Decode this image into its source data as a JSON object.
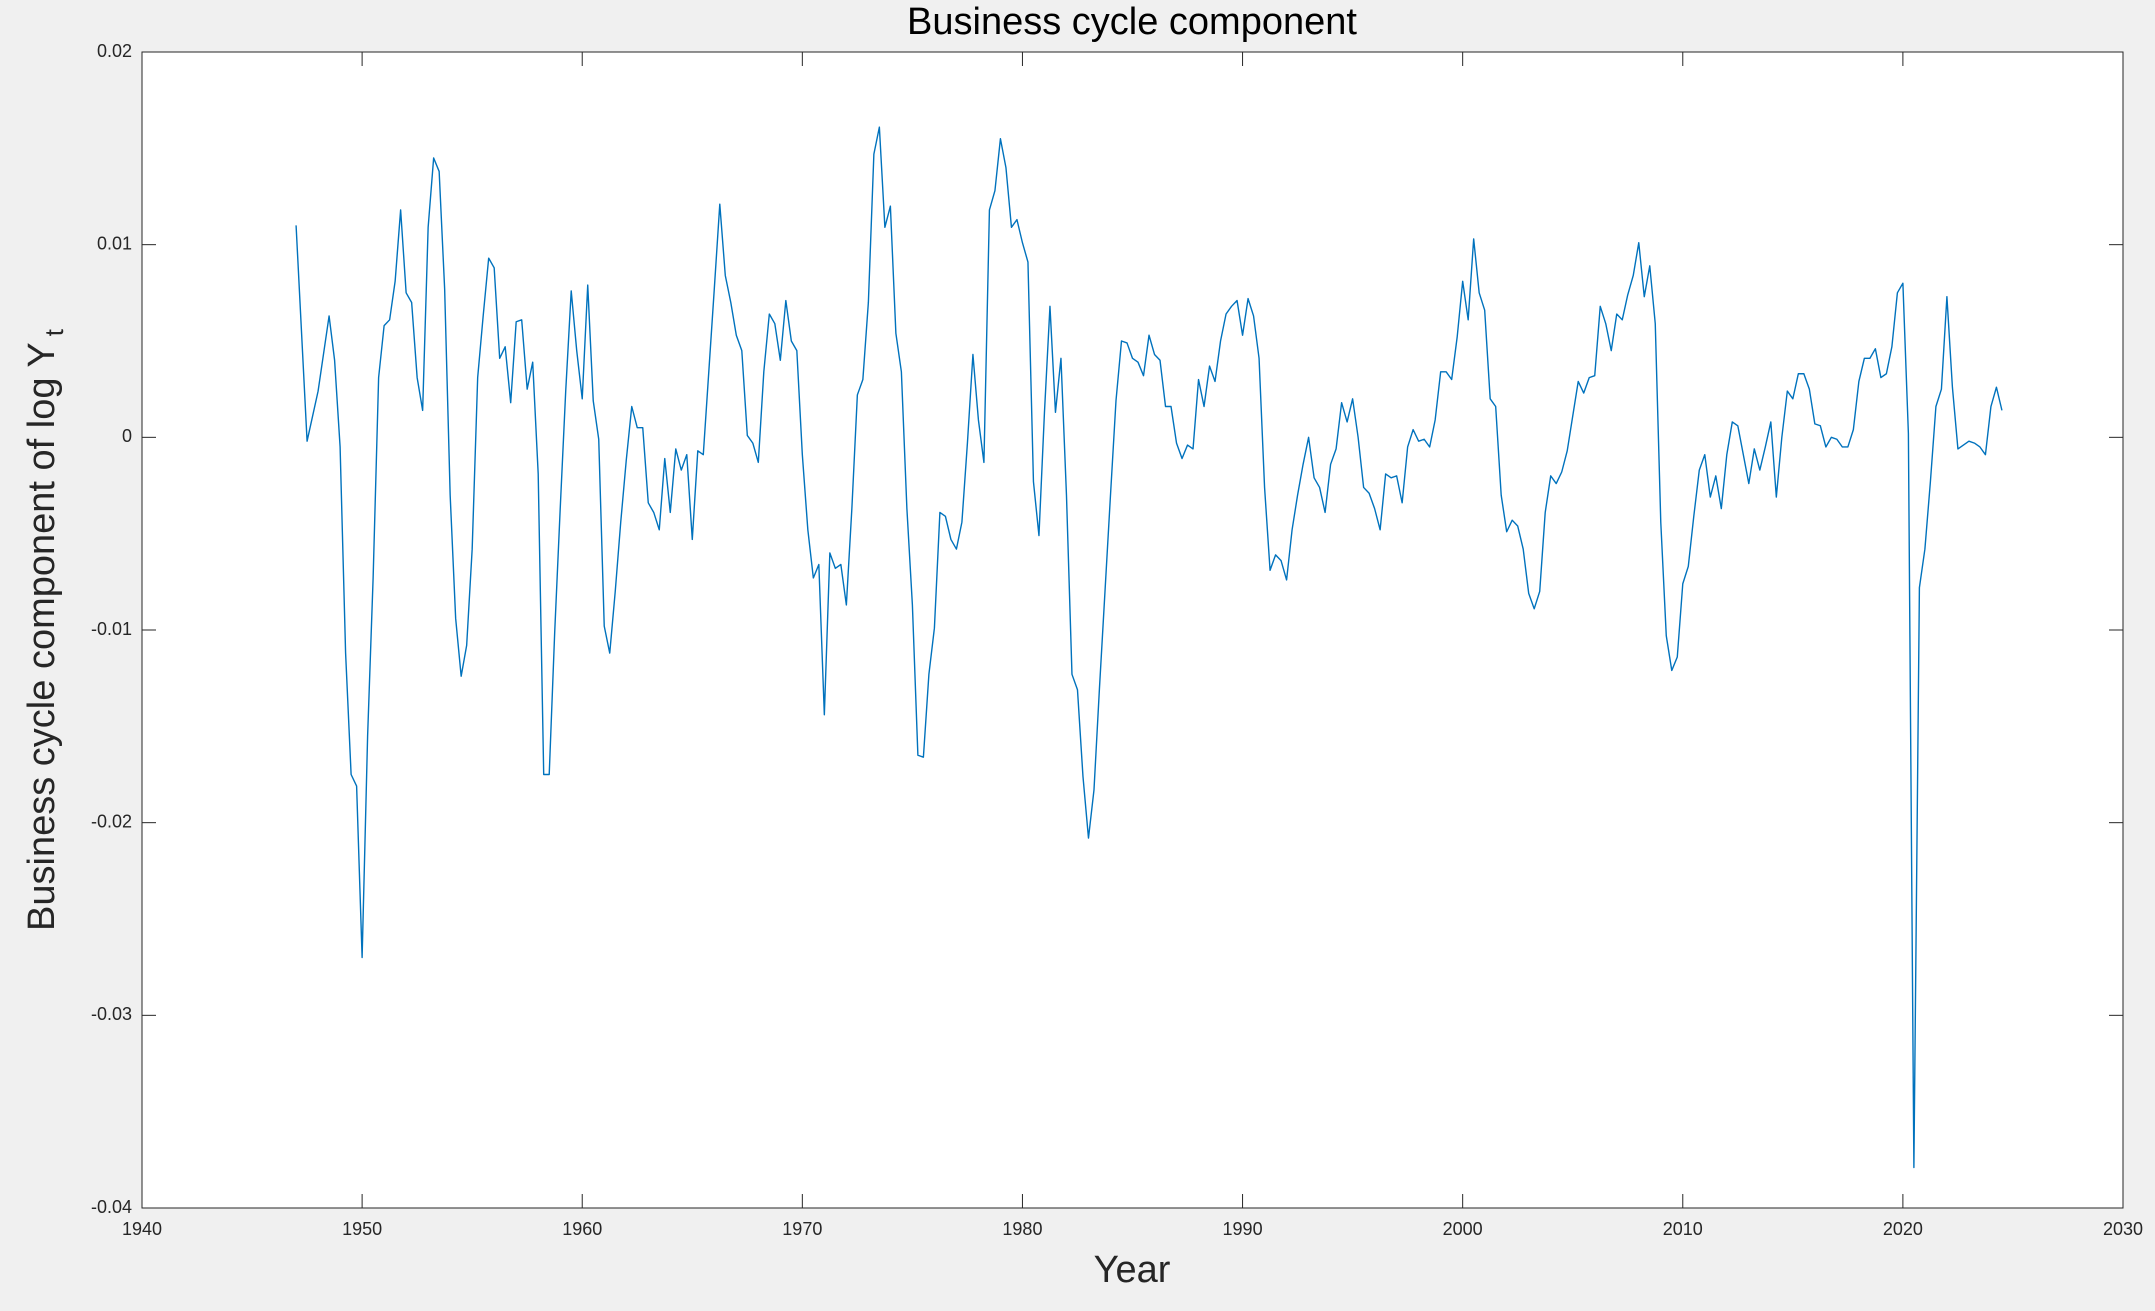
{
  "chart_data": {
    "type": "line",
    "title": "Business cycle component",
    "xlabel": "Year",
    "ylabel": {
      "text": "Business cycle component of log Y",
      "subscript": "t"
    },
    "color": "#0072bd",
    "xlim": [
      1940,
      2030
    ],
    "ylim": [
      -0.04,
      0.02
    ],
    "xticks": [
      1940,
      1950,
      1960,
      1970,
      1980,
      1990,
      2000,
      2010,
      2020,
      2030
    ],
    "yticks": [
      -0.04,
      -0.03,
      -0.02,
      -0.01,
      0,
      0.01,
      0.02
    ],
    "grid": false,
    "x": [
      1947,
      1947.5,
      1948,
      1948.5,
      1948.75,
      1949,
      1949.25,
      1949.5,
      1949.75,
      1950,
      1950.25,
      1950.5,
      1950.75,
      1951,
      1951.25,
      1951.5,
      1951.75,
      1952,
      1952.25,
      1952.5,
      1952.75,
      1953,
      1953.25,
      1953.5,
      1953.75,
      1954,
      1954.25,
      1954.5,
      1954.75,
      1955,
      1955.25,
      1955.5,
      1955.75,
      1956,
      1956.25,
      1956.5,
      1956.75,
      1957,
      1957.25,
      1957.5,
      1957.75,
      1958,
      1958.25,
      1958.5,
      1958.75,
      1959,
      1959.25,
      1959.5,
      1959.75,
      1960,
      1960.25,
      1960.5,
      1960.75,
      1961,
      1961.25,
      1961.5,
      1961.75,
      1962,
      1962.25,
      1962.5,
      1962.75,
      1963,
      1963.25,
      1963.5,
      1963.75,
      1964,
      1964.25,
      1964.5,
      1964.75,
      1965,
      1965.25,
      1965.5,
      1965.75,
      1966,
      1966.25,
      1966.5,
      1966.75,
      1967,
      1967.25,
      1967.5,
      1967.75,
      1968,
      1968.25,
      1968.5,
      1968.75,
      1969,
      1969.25,
      1969.5,
      1969.75,
      1970,
      1970.25,
      1970.5,
      1970.75,
      1971,
      1971.25,
      1971.5,
      1971.75,
      1972,
      1972.25,
      1972.5,
      1972.75,
      1973,
      1973.25,
      1973.5,
      1973.75,
      1974,
      1974.25,
      1974.5,
      1974.75,
      1975,
      1975.25,
      1975.5,
      1975.75,
      1976,
      1976.25,
      1976.5,
      1976.75,
      1977,
      1977.25,
      1977.5,
      1977.75,
      1978,
      1978.25,
      1978.5,
      1978.75,
      1979,
      1979.25,
      1979.5,
      1979.75,
      1980,
      1980.25,
      1980.5,
      1980.75,
      1981,
      1981.25,
      1981.5,
      1981.75,
      1982,
      1982.25,
      1982.5,
      1982.75,
      1983,
      1983.25,
      1983.5,
      1983.75,
      1984,
      1984.25,
      1984.5,
      1984.75,
      1985,
      1985.25,
      1985.5,
      1985.75,
      1986,
      1986.25,
      1986.5,
      1986.75,
      1987,
      1987.25,
      1987.5,
      1987.75,
      1988,
      1988.25,
      1988.5,
      1988.75,
      1989,
      1989.25,
      1989.5,
      1989.75,
      1990,
      1990.25,
      1990.5,
      1990.75,
      1991,
      1991.25,
      1991.5,
      1991.75,
      1992,
      1992.25,
      1992.5,
      1992.75,
      1993,
      1993.25,
      1993.5,
      1993.75,
      1994,
      1994.25,
      1994.5,
      1994.75,
      1995,
      1995.25,
      1995.5,
      1995.75,
      1996,
      1996.25,
      1996.5,
      1996.75,
      1997,
      1997.25,
      1997.5,
      1997.75,
      1998,
      1998.25,
      1998.5,
      1998.75,
      1999,
      1999.25,
      1999.5,
      1999.75,
      2000,
      2000.25,
      2000.5,
      2000.75,
      2001,
      2001.25,
      2001.5,
      2001.75,
      2002,
      2002.25,
      2002.5,
      2002.75,
      2003,
      2003.25,
      2003.5,
      2003.75,
      2004,
      2004.25,
      2004.5,
      2004.75,
      2005,
      2005.25,
      2005.5,
      2005.75,
      2006,
      2006.25,
      2006.5,
      2006.75,
      2007,
      2007.25,
      2007.5,
      2007.75,
      2008,
      2008.25,
      2008.5,
      2008.75,
      2009,
      2009.25,
      2009.5,
      2009.75,
      2010,
      2010.25,
      2010.5,
      2010.75,
      2011,
      2011.25,
      2011.5,
      2011.75,
      2012,
      2012.25,
      2012.5,
      2012.75,
      2013,
      2013.25,
      2013.5,
      2013.75,
      2014,
      2014.25,
      2014.5,
      2014.75,
      2015,
      2015.25,
      2015.5,
      2015.75,
      2016,
      2016.25,
      2016.5,
      2016.75,
      2017,
      2017.25,
      2017.5,
      2017.75,
      2018,
      2018.25,
      2018.5,
      2018.75,
      2019,
      2019.25,
      2019.5,
      2019.75,
      2020,
      2020.25,
      2020.5,
      2020.75,
      2021,
      2021.25,
      2021.5,
      2021.75,
      2022,
      2022.25,
      2022.5,
      2022.75,
      2023,
      2023.25,
      2023.5,
      2023.75,
      2024,
      2024.25,
      2024.5
    ],
    "values": [
      0.011,
      -0.0002,
      0.0024,
      0.0063,
      0.004,
      -0.0005,
      -0.0112,
      -0.0175,
      -0.0181,
      -0.027,
      -0.0155,
      -0.0073,
      0.0031,
      0.0058,
      0.0061,
      0.0081,
      0.0118,
      0.0075,
      0.007,
      0.0031,
      0.0014,
      0.0109,
      0.0145,
      0.0138,
      0.0077,
      -0.003,
      -0.0094,
      -0.0124,
      -0.0108,
      -0.0058,
      0.0031,
      0.0063,
      0.0093,
      0.0088,
      0.0041,
      0.0047,
      0.0018,
      0.006,
      0.0061,
      0.0025,
      0.0039,
      -0.0019,
      -0.0175,
      -0.0175,
      -0.0101,
      -0.0037,
      0.0024,
      0.0076,
      0.0045,
      0.002,
      0.0079,
      0.0019,
      -0.0001,
      -0.0098,
      -0.0112,
      -0.008,
      -0.0044,
      -0.0012,
      0.0016,
      0.0005,
      0.0005,
      -0.0034,
      -0.0039,
      -0.0048,
      -0.0011,
      -0.0039,
      -0.0006,
      -0.0017,
      -0.0009,
      -0.0053,
      -0.0007,
      -0.0009,
      0.0034,
      0.0077,
      0.0121,
      0.0084,
      0.007,
      0.0053,
      0.0045,
      0.0001,
      -0.0003,
      -0.0013,
      0.0034,
      0.0064,
      0.0059,
      0.004,
      0.0071,
      0.005,
      0.0045,
      -0.0009,
      -0.0048,
      -0.0073,
      -0.0066,
      -0.0144,
      -0.006,
      -0.0068,
      -0.0066,
      -0.0087,
      -0.0037,
      0.0022,
      0.003,
      0.007,
      0.0147,
      0.0161,
      0.0109,
      0.012,
      0.0054,
      0.0034,
      -0.0037,
      -0.0087,
      -0.0165,
      -0.0166,
      -0.0123,
      -0.0099,
      -0.0039,
      -0.0041,
      -0.0053,
      -0.0058,
      -0.0044,
      -0.0003,
      0.0043,
      0.0009,
      -0.0013,
      0.0118,
      0.0128,
      0.0155,
      0.014,
      0.0109,
      0.0113,
      0.0101,
      0.0091,
      -0.0023,
      -0.0051,
      0.0013,
      0.0068,
      0.0013,
      0.0041,
      -0.003,
      -0.0123,
      -0.0131,
      -0.0176,
      -0.0208,
      -0.0183,
      -0.013,
      -0.008,
      -0.003,
      0.0019,
      0.005,
      0.0049,
      0.0041,
      0.0039,
      0.0032,
      0.0053,
      0.0043,
      0.004,
      0.0016,
      0.0016,
      -0.0003,
      -0.0011,
      -0.0004,
      -0.0006,
      0.003,
      0.0016,
      0.0037,
      0.0029,
      0.005,
      0.0064,
      0.0068,
      0.0071,
      0.0053,
      0.0072,
      0.0063,
      0.0041,
      -0.0026,
      -0.0069,
      -0.0061,
      -0.0064,
      -0.0074,
      -0.0048,
      -0.003,
      -0.0014,
      0,
      -0.0021,
      -0.0026,
      -0.0039,
      -0.0014,
      -0.0006,
      0.0018,
      0.0008,
      0.002,
      0,
      -0.0026,
      -0.0029,
      -0.0037,
      -0.0048,
      -0.0019,
      -0.0021,
      -0.002,
      -0.0034,
      -0.0005,
      0.0004,
      -0.0002,
      -0.0001,
      -0.0005,
      0.0009,
      0.0034,
      0.0034,
      0.003,
      0.0052,
      0.0081,
      0.0061,
      0.0103,
      0.0075,
      0.0066,
      0.002,
      0.0016,
      -0.003,
      -0.0049,
      -0.0043,
      -0.0046,
      -0.0058,
      -0.0081,
      -0.0089,
      -0.008,
      -0.0039,
      -0.002,
      -0.0024,
      -0.0018,
      -0.0007,
      0.0011,
      0.0029,
      0.0023,
      0.0031,
      0.0032,
      0.0068,
      0.0059,
      0.0045,
      0.0064,
      0.0061,
      0.0074,
      0.0084,
      0.0101,
      0.0073,
      0.0089,
      0.0059,
      -0.0044,
      -0.0103,
      -0.0121,
      -0.0114,
      -0.0076,
      -0.0067,
      -0.0041,
      -0.0017,
      -0.0009,
      -0.0031,
      -0.002,
      -0.0037,
      -0.0009,
      0.0008,
      0.0006,
      -0.0009,
      -0.0024,
      -0.0006,
      -0.0017,
      -0.0005,
      0.0008,
      -0.0031,
      0,
      0.0024,
      0.002,
      0.0033,
      0.0033,
      0.0025,
      0.0007,
      0.0006,
      -0.0005,
      0,
      -0.0001,
      -0.0005,
      -0.0005,
      0.0004,
      0.0029,
      0.0041,
      0.0041,
      0.0046,
      0.0031,
      0.0033,
      0.0047,
      0.0075,
      0.008,
      0.0002,
      -0.0379,
      -0.0078,
      -0.0058,
      -0.0023,
      0.0016,
      0.0025,
      0.0073,
      0.0026,
      -0.0006,
      -0.0004,
      -0.0002,
      -0.0003,
      -0.0005,
      -0.0009,
      0.0016,
      0.0026,
      0.0014
    ]
  }
}
